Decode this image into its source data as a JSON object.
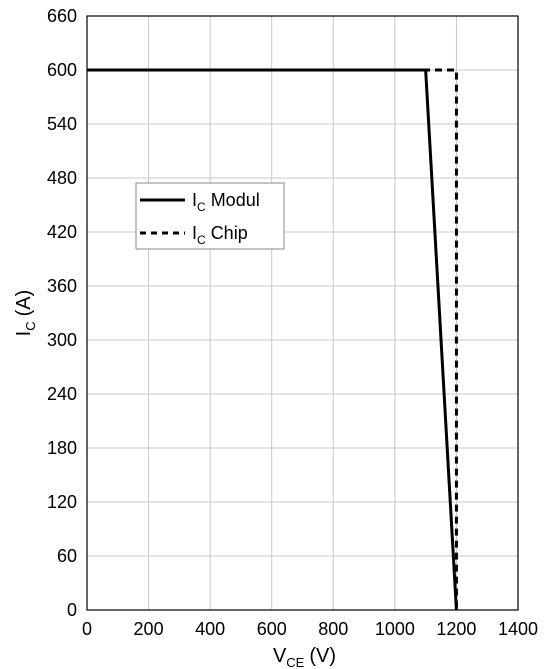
{
  "chart_data": {
    "type": "line",
    "xlabel": {
      "main": "V",
      "sub": "CE",
      "unit": "(V)"
    },
    "ylabel": {
      "main": "I",
      "sub": "C",
      "unit": "(A)"
    },
    "xlim": [
      0,
      1400
    ],
    "ylim": [
      0,
      660
    ],
    "xticks": [
      0,
      200,
      400,
      600,
      800,
      1000,
      1200,
      1400
    ],
    "yticks": [
      0,
      60,
      120,
      180,
      240,
      300,
      360,
      420,
      480,
      540,
      600,
      660
    ],
    "grid": true,
    "legend_position": "center-left",
    "series": [
      {
        "name": {
          "main": "I",
          "sub": "C",
          "rest": "Modul"
        },
        "style": "solid",
        "color": "#000000",
        "points": [
          [
            0,
            600
          ],
          [
            1100,
            600
          ],
          [
            1200,
            0
          ]
        ]
      },
      {
        "name": {
          "main": "I",
          "sub": "C",
          "rest": "Chip"
        },
        "style": "dashed",
        "color": "#000000",
        "points": [
          [
            0,
            600
          ],
          [
            1200,
            600
          ],
          [
            1200,
            0
          ]
        ]
      }
    ]
  }
}
